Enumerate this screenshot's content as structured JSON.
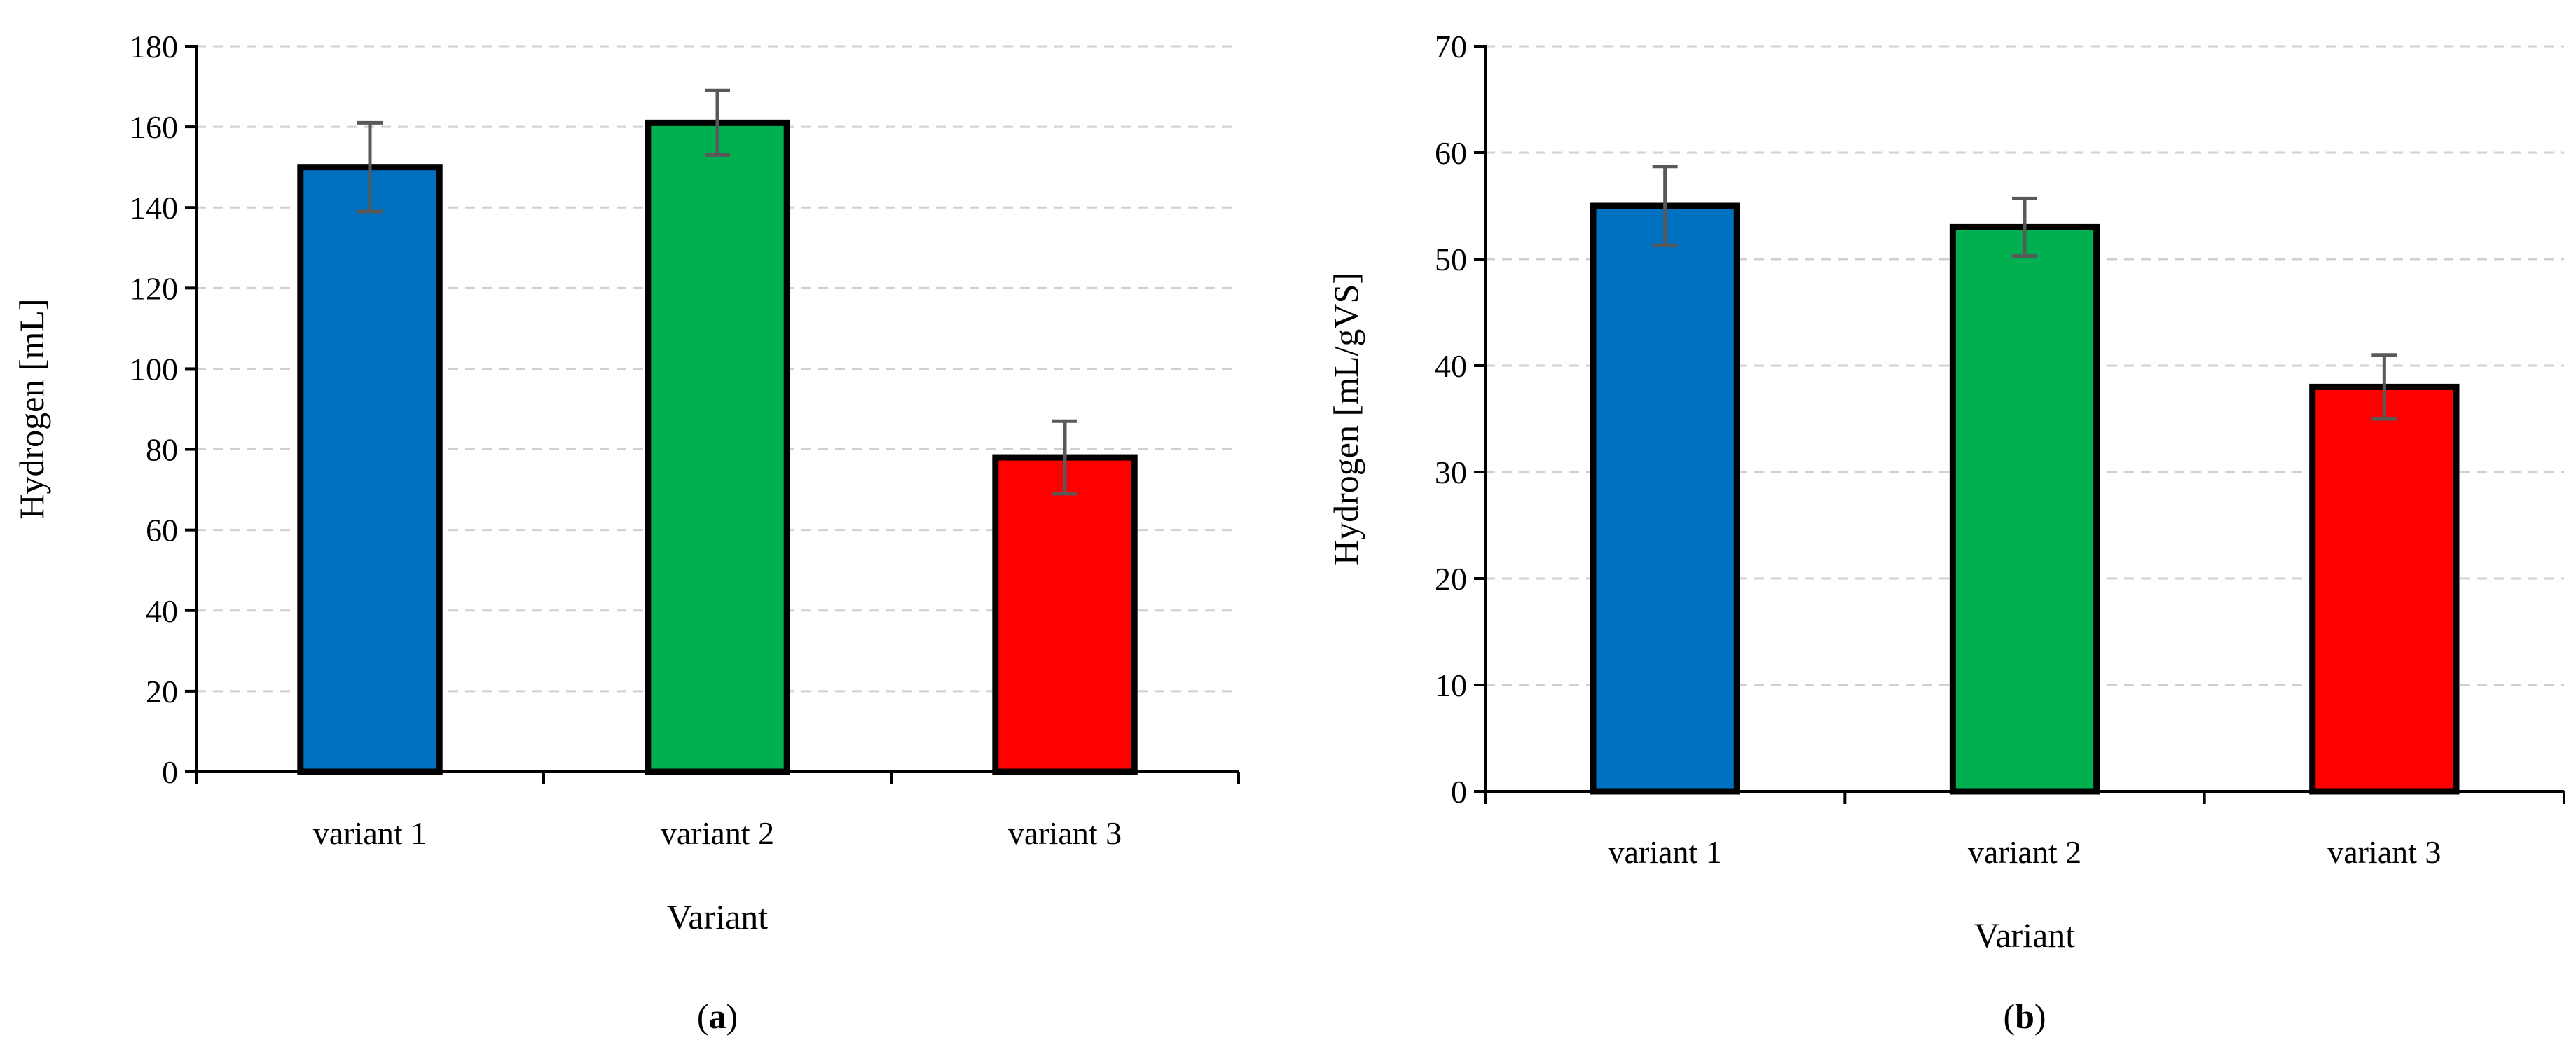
{
  "chart_data": [
    {
      "type": "bar",
      "panel_label": "a",
      "xlabel": "Variant",
      "ylabel": "Hydrogen [mL]",
      "categories": [
        "variant 1",
        "variant 2",
        "variant 3"
      ],
      "values": [
        150,
        161,
        78
      ],
      "errors": [
        11,
        8,
        9
      ],
      "colors": [
        "#0070C0",
        "#00B050",
        "#FF0000"
      ],
      "ylim": [
        0,
        180
      ],
      "yticks": [
        0,
        20,
        40,
        60,
        80,
        100,
        120,
        140,
        160,
        180
      ],
      "grid": true
    },
    {
      "type": "bar",
      "panel_label": "b",
      "xlabel": "Variant",
      "ylabel": "Hydrogen [mL/gVS]",
      "categories": [
        "variant 1",
        "variant 2",
        "variant 3"
      ],
      "values": [
        55,
        53,
        38
      ],
      "errors": [
        3.7,
        2.7,
        3
      ],
      "colors": [
        "#0070C0",
        "#00B050",
        "#FF0000"
      ],
      "ylim": [
        0,
        70
      ],
      "yticks": [
        0,
        10,
        20,
        30,
        40,
        50,
        60,
        70
      ],
      "grid": true
    }
  ]
}
